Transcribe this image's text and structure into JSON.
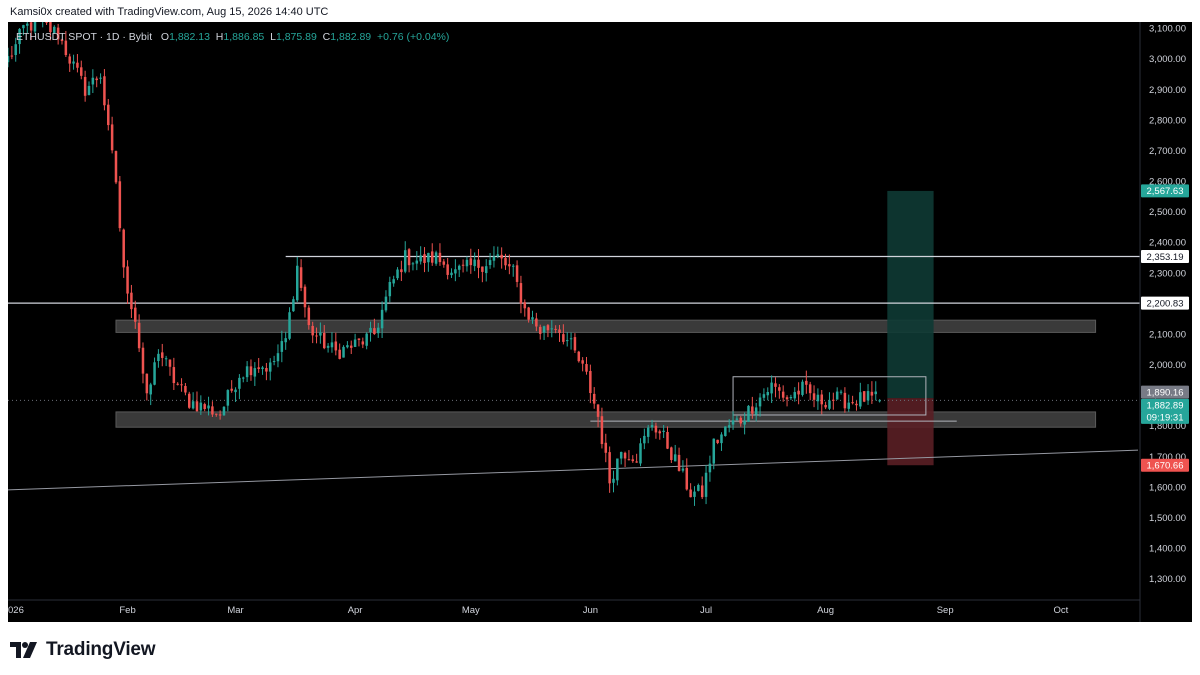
{
  "header": {
    "attribution": "Kamsi0x created with TradingView.com, Aug 15, 2026 14:40 UTC"
  },
  "legend": {
    "symbol": "ETHUSDT SPOT · 1D · Bybit",
    "open_label": "O",
    "open": "1,882.13",
    "high_label": "H",
    "high": "1,886.85",
    "low_label": "L",
    "low": "1,875.89",
    "close_label": "C",
    "close": "1,882.89",
    "change": "+0.76 (+0.04%)"
  },
  "footer": {
    "brand": "TradingView"
  },
  "colors": {
    "up": "#26a69a",
    "down": "#ef5350",
    "target_zone": "#0e3a34",
    "stop_zone": "#5a1f25",
    "zone_band": "#3a3a3a",
    "line": "#d1d4dc"
  },
  "chart_data": {
    "type": "candlestick",
    "title": "ETHUSDT SPOT · 1D · Bybit",
    "timeframe": "1D",
    "xlabel": "",
    "ylabel": "",
    "ylim": [
      1230,
      3120
    ],
    "y_ticks": [
      "1,300.00",
      "1,400.00",
      "1,500.00",
      "1,600.00",
      "1,700.00",
      "1,800.00",
      "1,900.00",
      "2,000.00",
      "2,100.00",
      "2,200.00",
      "2,300.00",
      "2,400.00",
      "2,500.00",
      "2,600.00",
      "2,700.00",
      "2,800.00",
      "2,900.00",
      "3,000.00",
      "3,100.00"
    ],
    "y_tick_values": [
      1300,
      1400,
      1500,
      1600,
      1700,
      1800,
      1900,
      2000,
      2100,
      2200,
      2300,
      2400,
      2500,
      2600,
      2700,
      2800,
      2900,
      3000,
      3100
    ],
    "x_ticks": [
      {
        "label": "026",
        "date": "2026-01-01"
      },
      {
        "label": "Feb",
        "date": "2026-02-01"
      },
      {
        "label": "Mar",
        "date": "2026-03-01"
      },
      {
        "label": "Apr",
        "date": "2026-04-01"
      },
      {
        "label": "May",
        "date": "2026-05-01"
      },
      {
        "label": "Jun",
        "date": "2026-06-01"
      },
      {
        "label": "Jul",
        "date": "2026-07-01"
      },
      {
        "label": "Aug",
        "date": "2026-08-01"
      },
      {
        "label": "Sep",
        "date": "2026-09-01"
      },
      {
        "label": "Oct",
        "date": "2026-10-01"
      }
    ],
    "xlim": [
      "2026-01-01",
      "2026-10-21"
    ],
    "price_anchors": [
      [
        "2026-01-01",
        3000
      ],
      [
        "2026-01-03",
        3040
      ],
      [
        "2026-01-05",
        3100
      ],
      [
        "2026-01-09",
        3120
      ],
      [
        "2026-01-14",
        3080
      ],
      [
        "2026-01-17",
        3000
      ],
      [
        "2026-01-21",
        2900
      ],
      [
        "2026-01-25",
        2950
      ],
      [
        "2026-01-27",
        2760
      ],
      [
        "2026-01-29",
        2600
      ],
      [
        "2026-01-31",
        2300
      ],
      [
        "2026-02-03",
        2150
      ],
      [
        "2026-02-06",
        1880
      ],
      [
        "2026-02-09",
        2050
      ],
      [
        "2026-02-13",
        1950
      ],
      [
        "2026-02-17",
        1880
      ],
      [
        "2026-02-21",
        1860
      ],
      [
        "2026-02-25",
        1840
      ],
      [
        "2026-03-02",
        1970
      ],
      [
        "2026-03-06",
        2000
      ],
      [
        "2026-03-10",
        1990
      ],
      [
        "2026-03-14",
        2080
      ],
      [
        "2026-03-17",
        2320
      ],
      [
        "2026-03-20",
        2120
      ],
      [
        "2026-03-23",
        2080
      ],
      [
        "2026-03-27",
        2040
      ],
      [
        "2026-04-02",
        2070
      ],
      [
        "2026-04-06",
        2100
      ],
      [
        "2026-04-10",
        2250
      ],
      [
        "2026-04-14",
        2350
      ],
      [
        "2026-04-18",
        2340
      ],
      [
        "2026-04-22",
        2350
      ],
      [
        "2026-04-27",
        2300
      ],
      [
        "2026-05-01",
        2320
      ],
      [
        "2026-05-04",
        2330
      ],
      [
        "2026-05-08",
        2350
      ],
      [
        "2026-05-12",
        2300
      ],
      [
        "2026-05-15",
        2180
      ],
      [
        "2026-05-19",
        2110
      ],
      [
        "2026-05-23",
        2130
      ],
      [
        "2026-05-27",
        2060
      ],
      [
        "2026-05-31",
        1960
      ],
      [
        "2026-06-03",
        1830
      ],
      [
        "2026-06-06",
        1620
      ],
      [
        "2026-06-09",
        1720
      ],
      [
        "2026-06-13",
        1700
      ],
      [
        "2026-06-17",
        1810
      ],
      [
        "2026-06-20",
        1760
      ],
      [
        "2026-06-24",
        1660
      ],
      [
        "2026-06-27",
        1580
      ],
      [
        "2026-06-30",
        1580
      ],
      [
        "2026-07-03",
        1740
      ],
      [
        "2026-07-07",
        1800
      ],
      [
        "2026-07-10",
        1820
      ],
      [
        "2026-07-14",
        1880
      ],
      [
        "2026-07-18",
        1930
      ],
      [
        "2026-07-22",
        1890
      ],
      [
        "2026-07-26",
        1920
      ],
      [
        "2026-07-30",
        1880
      ],
      [
        "2026-08-03",
        1890
      ],
      [
        "2026-08-07",
        1880
      ],
      [
        "2026-08-11",
        1890
      ],
      [
        "2026-08-15",
        1882.89
      ]
    ],
    "last_candle": {
      "date": "2026-08-15",
      "open": 1882.13,
      "high": 1886.85,
      "low": 1875.89,
      "close": 1882.89
    },
    "horizontal_lines": [
      {
        "price": 2353.19,
        "label": "2,353.19",
        "from": "2026-03-14",
        "to_axis": true
      },
      {
        "price": 2200.83,
        "label": "2,200.83",
        "from": "2026-01-01",
        "to_axis": true
      }
    ],
    "zones": [
      {
        "top": 2145,
        "bottom": 2105,
        "from": "2026-01-29",
        "to": "2026-10-10"
      },
      {
        "top": 1845,
        "bottom": 1795,
        "from": "2026-01-29",
        "to": "2026-10-10"
      }
    ],
    "trendline": {
      "from": [
        "2026-01-01",
        1590
      ],
      "to": [
        "2026-10-21",
        1720
      ]
    },
    "consolidation_box": {
      "top": 1960,
      "bottom": 1835,
      "from": "2026-07-08",
      "to": "2026-08-27"
    },
    "support_line": {
      "price": 1815,
      "from": "2026-06-01",
      "to": "2026-09-04"
    },
    "position": {
      "from": "2026-08-17",
      "to": "2026-08-29",
      "entry": 1890.16,
      "entry_label": "1,890.16",
      "target": 2567.63,
      "target_label": "2,567.63",
      "stop": 1670.66,
      "stop_label": "1,670.66"
    },
    "last_price_label": "1,882.89",
    "countdown": "09:19:31"
  }
}
